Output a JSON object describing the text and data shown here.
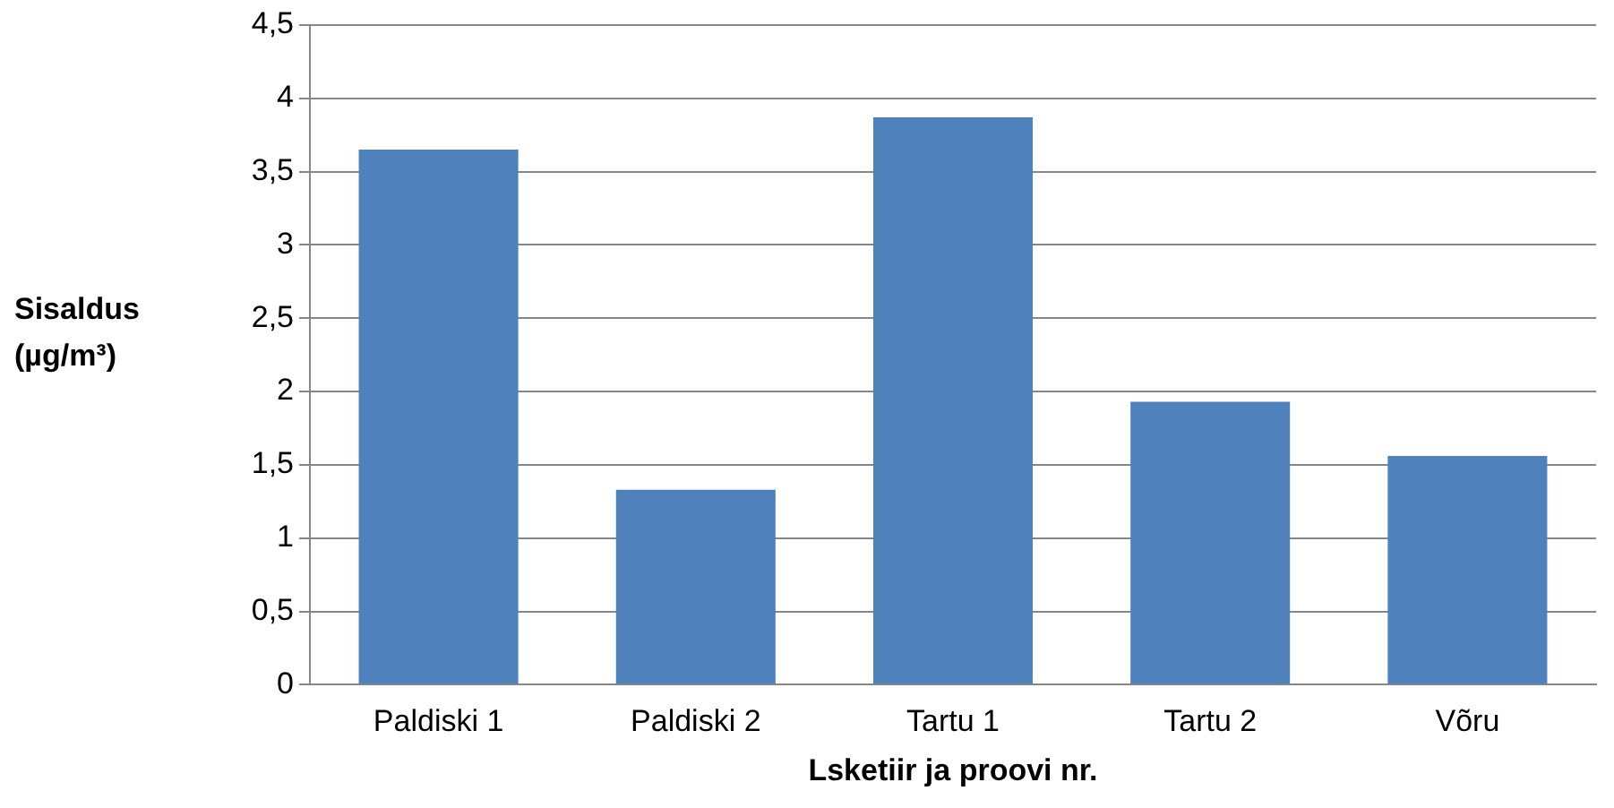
{
  "chart_data": {
    "type": "bar",
    "xlabel": "Lsketiir ja proovi nr.",
    "ylabel": "Sisaldus (µg/m³)",
    "categories": [
      "Paldiski 1",
      "Paldiski 2",
      "Tartu 1",
      "Tartu 2",
      "Võru"
    ],
    "values": [
      3.65,
      1.33,
      3.87,
      1.93,
      1.56
    ],
    "color": "#4f81bd",
    "ylim": [
      0,
      4.5
    ],
    "yticks": [
      {
        "value": 0,
        "label": "0"
      },
      {
        "value": 0.5,
        "label": "0,5"
      },
      {
        "value": 1,
        "label": "1"
      },
      {
        "value": 1.5,
        "label": "1,5"
      },
      {
        "value": 2,
        "label": "2"
      },
      {
        "value": 2.5,
        "label": "2,5"
      },
      {
        "value": 3,
        "label": "3"
      },
      {
        "value": 3.5,
        "label": "3,5"
      },
      {
        "value": 4,
        "label": "4"
      },
      {
        "value": 4.5,
        "label": "4,5"
      }
    ],
    "grid": "y",
    "legend": false
  }
}
